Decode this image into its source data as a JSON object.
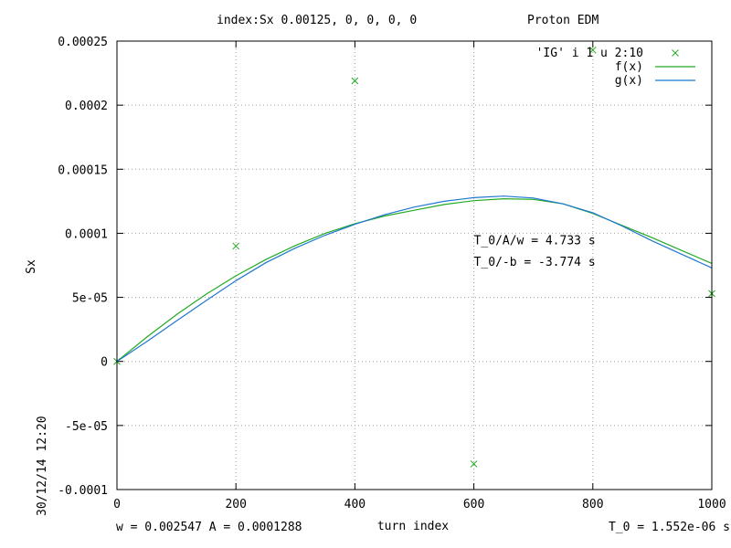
{
  "chart_data": {
    "type": "scatter",
    "title": "index:Sx  0.00125, 0, 0, 0, 0",
    "subtitle": "Proton EDM",
    "xlabel": "turn index",
    "ylabel": "Sx",
    "xlim": [
      0,
      1000
    ],
    "ylim": [
      -0.0001,
      0.00025
    ],
    "grid": true,
    "legend_position": "top-right",
    "x_ticks": [
      {
        "v": 0,
        "label": "0"
      },
      {
        "v": 200,
        "label": "200"
      },
      {
        "v": 400,
        "label": "400"
      },
      {
        "v": 600,
        "label": "600"
      },
      {
        "v": 800,
        "label": "800"
      },
      {
        "v": 1000,
        "label": "1000"
      }
    ],
    "y_ticks": [
      {
        "v": -0.0001,
        "label": "-0.0001"
      },
      {
        "v": -5e-05,
        "label": "-5e-05"
      },
      {
        "v": 0,
        "label": "0"
      },
      {
        "v": 5e-05,
        "label": "5e-05"
      },
      {
        "v": 0.0001,
        "label": "0.0001"
      },
      {
        "v": 0.00015,
        "label": "0.00015"
      },
      {
        "v": 0.0002,
        "label": "0.0002"
      },
      {
        "v": 0.00025,
        "label": "0.00025"
      }
    ],
    "series": [
      {
        "name": "'IG' i 1 u 2:10",
        "kind": "points",
        "color": "#22aa22",
        "x": [
          0,
          200,
          400,
          600,
          800,
          1000
        ],
        "y": [
          0,
          9e-05,
          0.000219,
          -8e-05,
          0.000243,
          5.3e-05
        ]
      },
      {
        "name": "f(x)",
        "kind": "line",
        "color": "#22aa22",
        "x": [
          0,
          50,
          100,
          150,
          200,
          250,
          300,
          350,
          400,
          450,
          500,
          550,
          600,
          650,
          700,
          750,
          800,
          850,
          900,
          950,
          1000
        ],
        "y": [
          0,
          1.9e-05,
          3.65e-05,
          5.25e-05,
          6.68e-05,
          7.95e-05,
          9.05e-05,
          0.0001,
          0.0001075,
          0.0001135,
          0.000118,
          0.0001225,
          0.0001255,
          0.000127,
          0.0001265,
          0.000123,
          0.0001155,
          0.000106,
          9.65e-05,
          8.65e-05,
          7.65e-05
        ]
      },
      {
        "name": "g(x)",
        "kind": "line",
        "color": "#1f77d0",
        "x": [
          0,
          50,
          100,
          150,
          200,
          250,
          300,
          350,
          400,
          450,
          500,
          550,
          600,
          650,
          700,
          750,
          800,
          850,
          900,
          950,
          1000
        ],
        "y": [
          0,
          1.55e-05,
          3.16e-05,
          4.75e-05,
          6.3e-05,
          7.7e-05,
          8.85e-05,
          9.85e-05,
          0.000107,
          0.0001145,
          0.0001205,
          0.000125,
          0.0001278,
          0.000129,
          0.0001275,
          0.000123,
          0.000116,
          0.0001055,
          9.4e-05,
          8.35e-05,
          7.3e-05
        ]
      }
    ],
    "annotations": [
      {
        "text": "T_0/A/w = 4.733 s",
        "x": 600,
        "y": 9.15e-05
      },
      {
        "text": "T_0/-b = -3.774 s",
        "x": 600,
        "y": 7.45e-05
      }
    ],
    "timestamp": "30/12/14 12:20",
    "footer": {
      "left": "w = 0.002547   A = 0.0001288",
      "right": "T_0 = 1.552e-06 s"
    }
  }
}
